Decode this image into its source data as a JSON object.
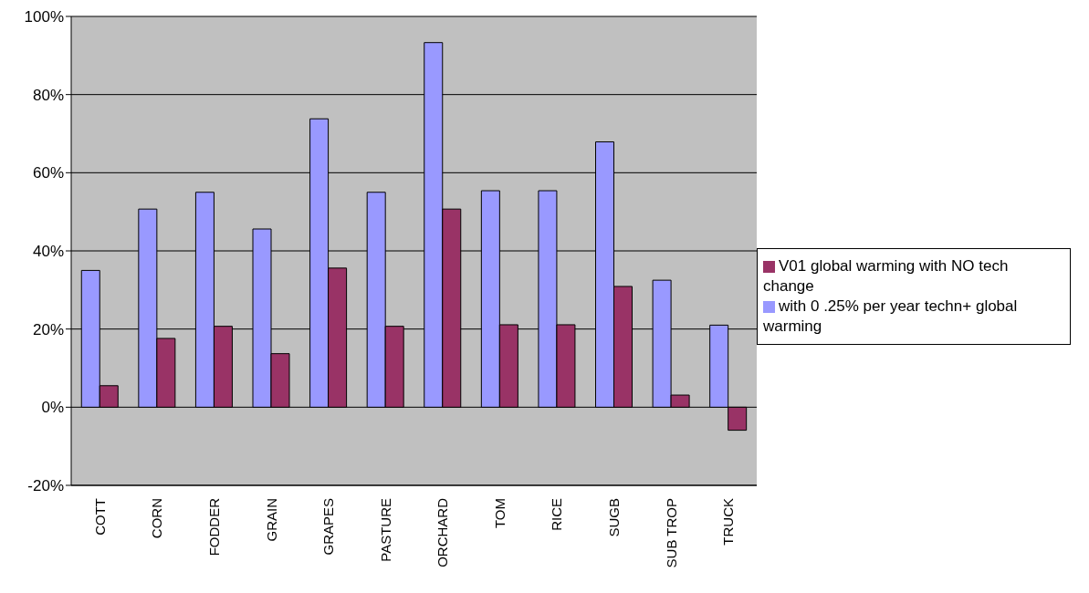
{
  "chart_data": {
    "type": "bar",
    "categories": [
      "COTT",
      "CORN",
      "FODDER",
      "GRAIN",
      "GRAPES",
      "PASTURE",
      "ORCHARD",
      "TOM",
      "RICE",
      "SUGB",
      "SUB TROP",
      "TRUCK"
    ],
    "series": [
      {
        "name": "with 0 .25% per year techn+ global warming",
        "color": "#9999ff",
        "values": [
          35,
          50.7,
          55,
          45.6,
          73.8,
          55,
          93.3,
          55.4,
          55.4,
          67.9,
          32.5,
          21
        ]
      },
      {
        "name": "V01 global warming with NO tech change",
        "color": "#993366",
        "values": [
          5.5,
          17.6,
          20.7,
          13.7,
          35.6,
          20.7,
          50.7,
          21.1,
          21.1,
          30.9,
          3.1,
          -5.9
        ]
      }
    ],
    "ylim": [
      -20,
      100
    ],
    "yticks": [
      {
        "value": -20,
        "label": "-20%"
      },
      {
        "value": 0,
        "label": "0%"
      },
      {
        "value": 20,
        "label": "20%"
      },
      {
        "value": 40,
        "label": "40%"
      },
      {
        "value": 60,
        "label": "60%"
      },
      {
        "value": 80,
        "label": "80%"
      },
      {
        "value": 100,
        "label": "100%"
      }
    ],
    "grid": "y",
    "legend": "right"
  }
}
